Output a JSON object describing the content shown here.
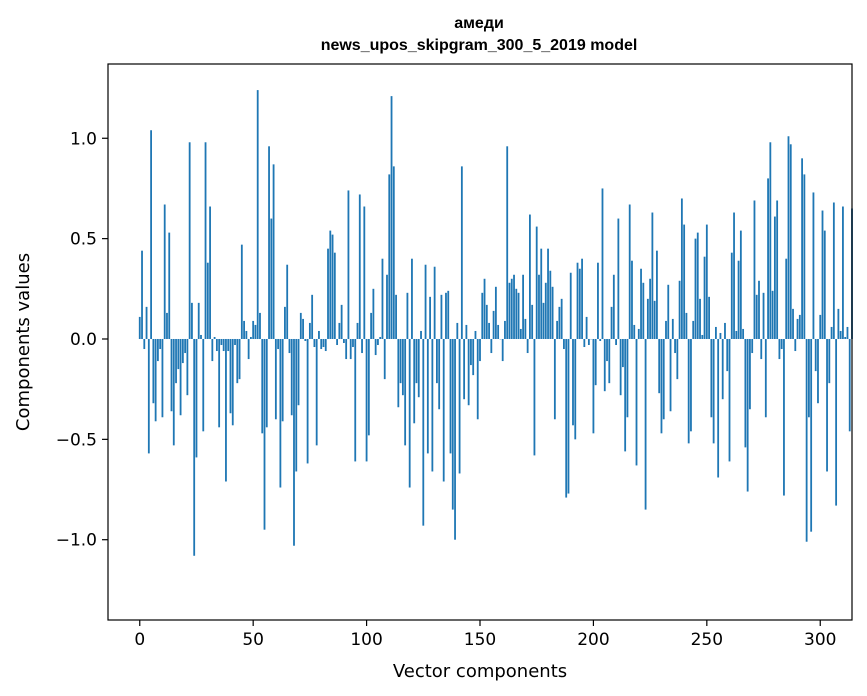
{
  "chart_data": {
    "type": "bar",
    "title": "амеди",
    "subtitle": "news_upos_skipgram_300_5_2019 model",
    "xlabel": "Vector components",
    "ylabel": "Components values",
    "xlim": [
      -14,
      314
    ],
    "ylim": [
      -1.4,
      1.37
    ],
    "xticks": [
      0,
      50,
      100,
      150,
      200,
      250,
      300
    ],
    "yticks": [
      -1.0,
      -0.5,
      0.0,
      0.5,
      1.0
    ],
    "ytick_labels": [
      "−1.0",
      "−0.5",
      "0.0",
      "0.5",
      "1.0"
    ],
    "color": "#1f77b4",
    "values": [
      0.11,
      0.44,
      -0.05,
      0.16,
      -0.57,
      1.04,
      -0.32,
      -0.41,
      -0.11,
      -0.05,
      -0.39,
      0.67,
      0.13,
      0.53,
      -0.36,
      -0.53,
      -0.22,
      -0.15,
      -0.38,
      -0.12,
      -0.07,
      -0.28,
      0.98,
      0.18,
      -1.08,
      -0.59,
      0.18,
      0.02,
      -0.46,
      0.98,
      0.38,
      0.66,
      -0.11,
      0.01,
      -0.06,
      -0.44,
      -0.03,
      -0.06,
      -0.71,
      -0.06,
      -0.37,
      -0.43,
      -0.03,
      -0.22,
      -0.2,
      0.47,
      0.09,
      0.04,
      -0.1,
      0.01,
      0.09,
      0.07,
      1.24,
      0.13,
      -0.47,
      -0.95,
      -0.44,
      0.96,
      0.6,
      0.87,
      -0.4,
      -0.05,
      -0.74,
      -0.41,
      0.16,
      0.37,
      -0.07,
      -0.38,
      -1.03,
      -0.66,
      -0.33,
      0.13,
      0.1,
      -0.01,
      -0.62,
      0.08,
      0.22,
      -0.04,
      -0.53,
      0.04,
      -0.05,
      -0.04,
      -0.06,
      0.45,
      0.54,
      0.52,
      0.43,
      -0.03,
      0.08,
      0.17,
      -0.02,
      -0.1,
      0.74,
      -0.1,
      -0.04,
      -0.61,
      0.08,
      0.72,
      -0.07,
      0.66,
      -0.61,
      -0.48,
      0.13,
      0.25,
      -0.08,
      -0.03,
      0.01,
      0.4,
      -0.2,
      0.32,
      0.82,
      1.21,
      0.86,
      0.22,
      -0.34,
      -0.22,
      -0.28,
      -0.53,
      0.23,
      -0.74,
      0.4,
      -0.42,
      -0.22,
      -0.29,
      0.04,
      -0.93,
      0.37,
      -0.57,
      0.21,
      -0.66,
      0.36,
      -0.22,
      -0.35,
      0.22,
      -0.71,
      0.23,
      0.24,
      -0.57,
      -0.85,
      -1.0,
      0.08,
      -0.67,
      0.86,
      -0.3,
      0.07,
      -0.33,
      -0.13,
      -0.18,
      0.04,
      -0.4,
      -0.11,
      0.23,
      0.3,
      0.17,
      0.08,
      -0.07,
      0.14,
      0.26,
      0.07,
      0.0,
      -0.11,
      0.09,
      0.96,
      0.28,
      0.3,
      0.32,
      0.25,
      0.23,
      0.05,
      0.32,
      0.1,
      -0.07,
      0.62,
      0.17,
      -0.58,
      0.56,
      0.32,
      0.45,
      0.18,
      0.28,
      0.45,
      0.34,
      0.26,
      -0.4,
      0.09,
      0.16,
      0.2,
      -0.05,
      -0.79,
      -0.77,
      0.33,
      -0.43,
      -0.5,
      0.38,
      0.35,
      0.4,
      -0.04,
      0.11,
      -0.03,
      0.0,
      -0.47,
      -0.23,
      0.38,
      -0.01,
      0.75,
      -0.26,
      -0.11,
      -0.22,
      0.16,
      0.32,
      -0.03,
      0.6,
      -0.28,
      -0.14,
      -0.56,
      -0.39,
      0.67,
      0.39,
      0.07,
      -0.63,
      0.05,
      0.35,
      0.28,
      -0.85,
      0.2,
      0.3,
      0.63,
      0.19,
      0.44,
      -0.27,
      -0.47,
      -0.4,
      0.09,
      0.27,
      -0.36,
      0.1,
      -0.07,
      -0.2,
      0.29,
      0.7,
      0.57,
      0.13,
      -0.52,
      -0.46,
      0.09,
      0.5,
      0.53,
      0.2,
      0.02,
      0.41,
      0.57,
      0.21,
      -0.39,
      -0.52,
      0.06,
      -0.69,
      0.03,
      -0.3,
      0.08,
      -0.16,
      -0.61,
      0.43,
      0.63,
      0.04,
      0.39,
      0.54,
      0.05,
      -0.54,
      -0.76,
      -0.35,
      -0.07,
      0.69,
      0.22,
      0.29,
      -0.1,
      0.23,
      -0.39,
      0.8,
      0.98,
      0.24,
      0.61,
      0.69,
      -0.1,
      -0.05,
      -0.78,
      0.4,
      1.01,
      0.97,
      0.15,
      -0.06,
      0.1,
      0.12,
      0.9,
      0.82,
      -1.01,
      -0.39,
      -0.96,
      0.73,
      -0.16,
      -0.32,
      0.12,
      0.64,
      0.54,
      -0.66,
      -0.22,
      0.06,
      0.68,
      -0.83,
      0.15,
      0.04,
      0.66,
      0.01,
      0.06,
      -0.46,
      0.65
    ]
  }
}
